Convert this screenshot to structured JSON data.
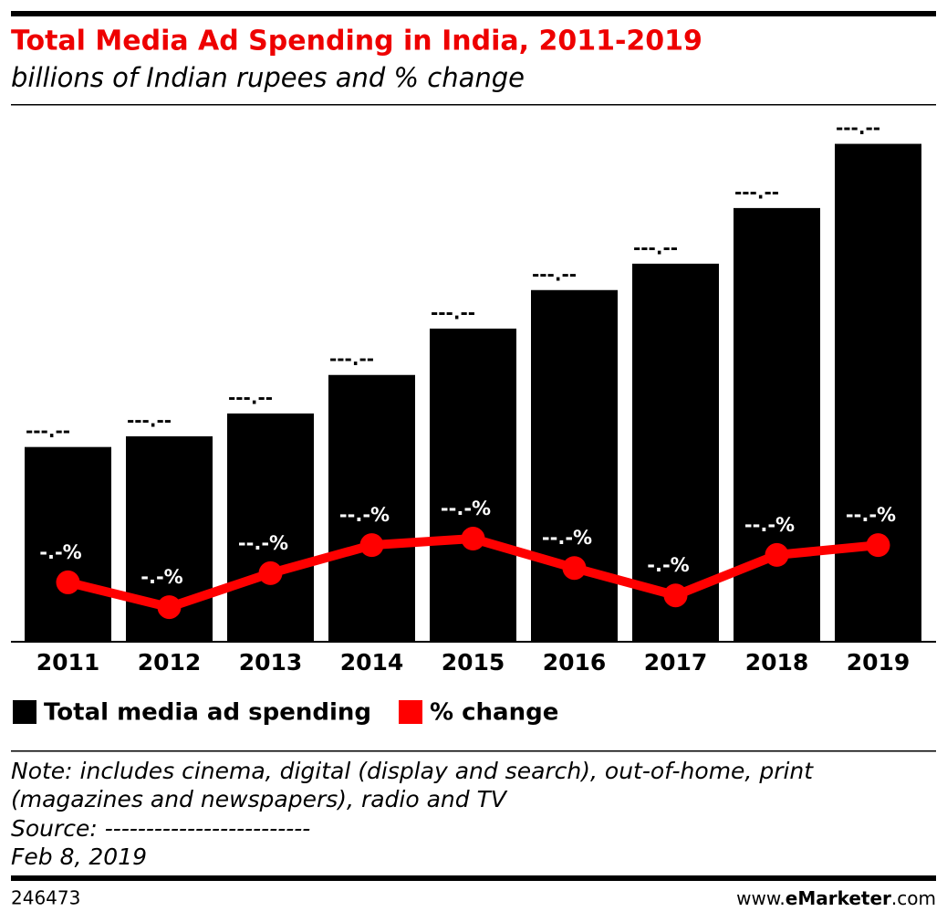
{
  "chart_data": {
    "type": "bar-line",
    "title": "Total Media Ad Spending in India, 2011-2019",
    "subtitle": "billions of Indian rupees and % change",
    "categories": [
      "2011",
      "2012",
      "2013",
      "2014",
      "2015",
      "2016",
      "2017",
      "2018",
      "2019"
    ],
    "series": [
      {
        "name": "Total media ad spending",
        "type": "bar",
        "color": "#000000",
        "values": [
          273,
          288,
          320,
          374,
          439,
          493,
          530,
          608,
          698
        ],
        "value_labels": [
          "---.--",
          "---.--",
          "---.--",
          "---.--",
          "---.--",
          "---.--",
          "---.--",
          "---.--",
          "---.--"
        ]
      },
      {
        "name": "% change",
        "type": "line",
        "axis": "y2",
        "color": "#ff0000",
        "values": [
          9.1,
          5.3,
          10.5,
          14.8,
          15.8,
          11.3,
          7.1,
          13.3,
          14.8
        ],
        "value_labels": [
          "-.-%",
          "-.-%",
          "--.-%",
          "--.-%",
          "--.-%",
          "--.-%",
          "-.-%",
          "--.-%",
          "--.-%"
        ]
      }
    ],
    "ylim": [
      0,
      700
    ],
    "y2lim": [
      0,
      76.5
    ],
    "grid": false,
    "legend": "bottom-left"
  },
  "notes": [
    "Note: includes cinema, digital (display and search), out-of-home, print",
    "(magazines and newspapers), radio and TV",
    "Source: -------------------------",
    "Feb 8, 2019"
  ],
  "footer": {
    "id": "246473",
    "site_prefix": "www.",
    "site_brand": "eMarketer",
    "site_suffix": ".com"
  }
}
